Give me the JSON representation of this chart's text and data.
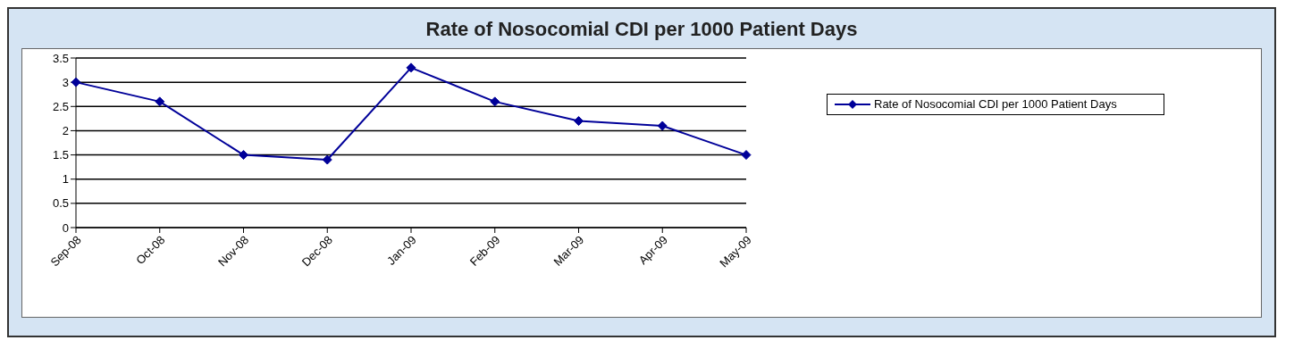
{
  "chart_data": {
    "type": "line",
    "title": "Rate of Nosocomial CDI per 1000 Patient Days",
    "categories": [
      "Sep-08",
      "Oct-08",
      "Nov-08",
      "Dec-08",
      "Jan-09",
      "Feb-09",
      "Mar-09",
      "Apr-09",
      "May-09"
    ],
    "series": [
      {
        "name": "Rate of Nosocomial CDI per 1000 Patient Days",
        "color": "#000099",
        "values": [
          3,
          2.6,
          1.5,
          1.4,
          3.3,
          2.6,
          2.2,
          2.1,
          1.5
        ]
      }
    ],
    "ylim": [
      0,
      3.5
    ],
    "yticks": [
      0,
      0.5,
      1,
      1.5,
      2,
      2.5,
      3,
      3.5
    ],
    "grid": "y",
    "legend": "right",
    "marker": "diamond",
    "line_style": "solid"
  }
}
